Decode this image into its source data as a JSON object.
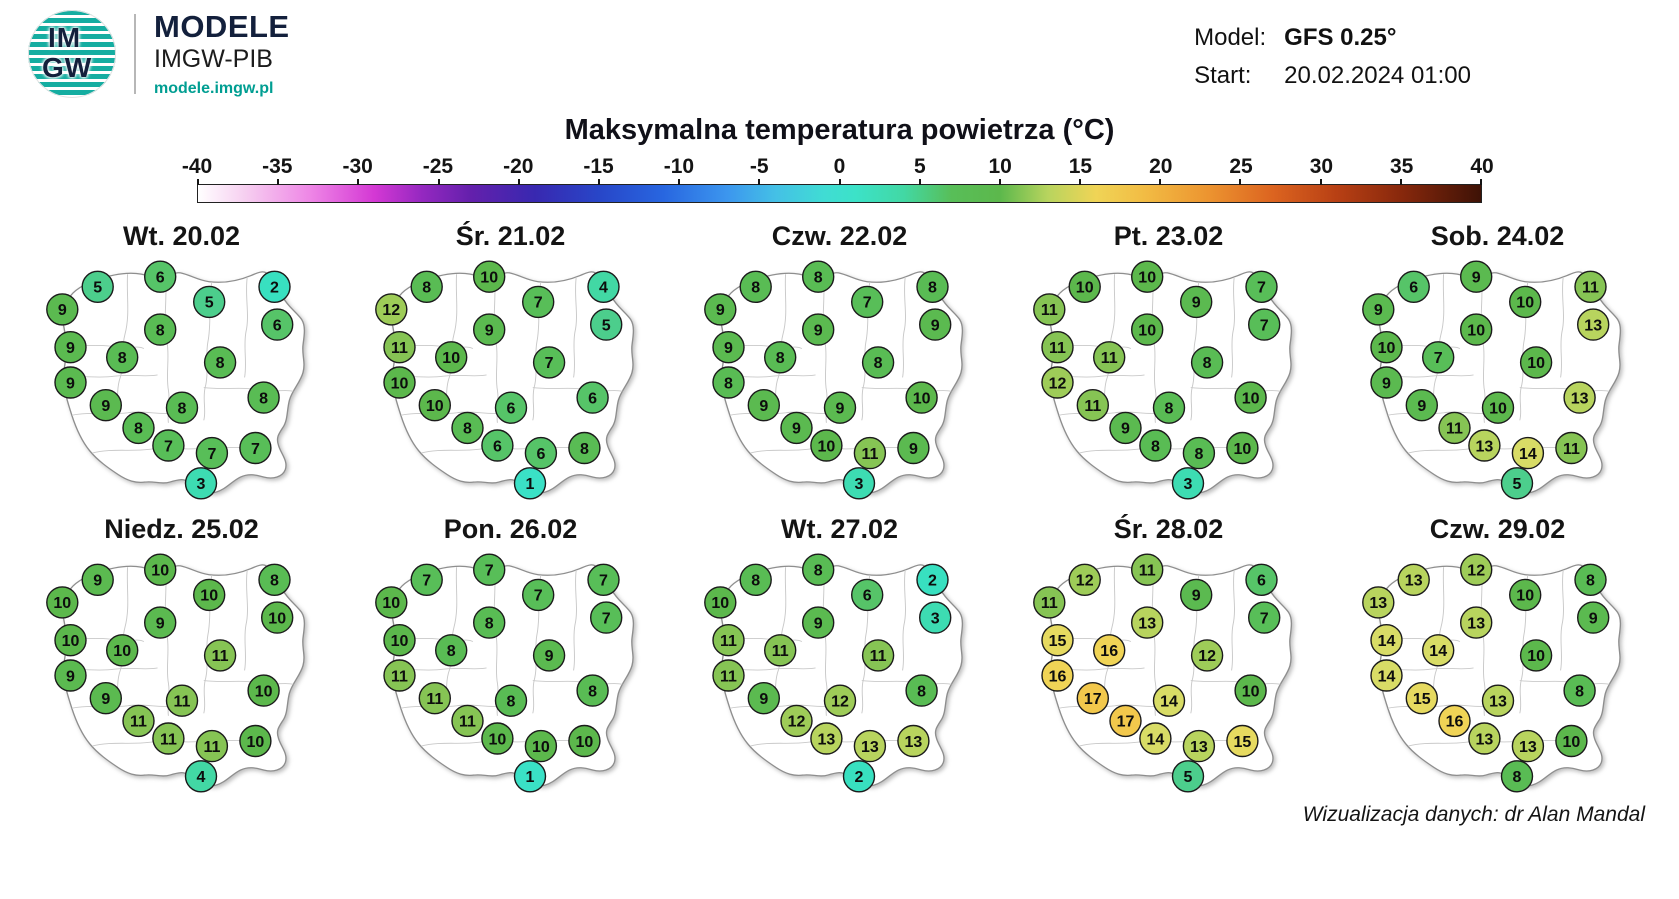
{
  "header": {
    "logo_text_top": "IM",
    "logo_text_bottom": "GW",
    "brand_name": "MODELE",
    "brand_sub": "IMGW-PIB",
    "brand_url": "modele.imgw.pl",
    "model_label": "Model:",
    "model_value": "GFS 0.25°",
    "start_label": "Start:",
    "start_value": "20.02.2024 01:00"
  },
  "title": "Maksymalna temperatura powietrza (°C)",
  "footer_credit": "Wizualizacja danych: dr Alan Mandal",
  "colors": {
    "brand_teal": "#15ada1",
    "brand_navy": "#13203c",
    "url_teal": "#009e92"
  },
  "chart_data": {
    "type": "heatmap",
    "title": "Maksymalna temperatura powietrza (°C)",
    "unit": "°C",
    "model": "GFS 0.25°",
    "run_start": "20.02.2024 01:00",
    "legend_position": "top",
    "scale_range": [
      -40,
      40
    ],
    "scale_ticks": [
      -40,
      -35,
      -30,
      -25,
      -20,
      -15,
      -10,
      -5,
      0,
      5,
      10,
      15,
      20,
      25,
      30,
      35,
      40
    ],
    "gradient_stops": [
      [
        -40,
        "#FFFFFF"
      ],
      [
        -37,
        "#F6CEF0"
      ],
      [
        -33,
        "#EE86E6"
      ],
      [
        -29,
        "#D438D4"
      ],
      [
        -26,
        "#9428C0"
      ],
      [
        -23,
        "#6420AC"
      ],
      [
        -19,
        "#3828B0"
      ],
      [
        -15,
        "#2846C8"
      ],
      [
        -11,
        "#2866E0"
      ],
      [
        -7,
        "#3C96EE"
      ],
      [
        -4,
        "#44C0E6"
      ],
      [
        -1,
        "#40DCD4"
      ],
      [
        1,
        "#3CE2C8"
      ],
      [
        4,
        "#42D8A4"
      ],
      [
        7,
        "#58BE58"
      ],
      [
        10,
        "#5CB84C"
      ],
      [
        13,
        "#B8D45E"
      ],
      [
        16,
        "#F0D456"
      ],
      [
        19,
        "#F2BC44"
      ],
      [
        23,
        "#EC9430"
      ],
      [
        27,
        "#DC6420"
      ],
      [
        31,
        "#B84014"
      ],
      [
        35,
        "#88280C"
      ],
      [
        40,
        "#3E1206"
      ]
    ],
    "marker_color_stops": [
      [
        0,
        "#3CE2CC"
      ],
      [
        2,
        "#38E0C0"
      ],
      [
        4,
        "#42D8A4"
      ],
      [
        5,
        "#4CCE8C"
      ],
      [
        6,
        "#56C468"
      ],
      [
        7,
        "#58BE58"
      ],
      [
        10,
        "#5CB84C"
      ],
      [
        11,
        "#86C454"
      ],
      [
        12,
        "#9ECC58"
      ],
      [
        13,
        "#B8D45E"
      ],
      [
        14,
        "#D8DC66"
      ],
      [
        15,
        "#E6DA60"
      ],
      [
        16,
        "#F0D456"
      ],
      [
        17,
        "#F2C84C"
      ]
    ],
    "marker_positions": [
      {
        "x": 19,
        "y": 13
      },
      {
        "x": 42,
        "y": 9
      },
      {
        "x": 84,
        "y": 13
      },
      {
        "x": 6,
        "y": 22
      },
      {
        "x": 60,
        "y": 19
      },
      {
        "x": 42,
        "y": 30
      },
      {
        "x": 85,
        "y": 28
      },
      {
        "x": 9,
        "y": 37
      },
      {
        "x": 28,
        "y": 41
      },
      {
        "x": 64,
        "y": 43
      },
      {
        "x": 9,
        "y": 51
      },
      {
        "x": 22,
        "y": 60
      },
      {
        "x": 50,
        "y": 61
      },
      {
        "x": 80,
        "y": 57
      },
      {
        "x": 34,
        "y": 69
      },
      {
        "x": 45,
        "y": 76
      },
      {
        "x": 61,
        "y": 79
      },
      {
        "x": 77,
        "y": 77
      },
      {
        "x": 57,
        "y": 91
      }
    ],
    "days": [
      {
        "label": "Wt. 20.02",
        "values": [
          5,
          6,
          2,
          9,
          5,
          8,
          6,
          9,
          8,
          8,
          9,
          9,
          8,
          8,
          8,
          7,
          7,
          7,
          3
        ]
      },
      {
        "label": "Śr. 21.02",
        "values": [
          8,
          10,
          4,
          12,
          7,
          9,
          5,
          11,
          10,
          7,
          10,
          10,
          6,
          6,
          8,
          6,
          6,
          8,
          1
        ]
      },
      {
        "label": "Czw. 22.02",
        "values": [
          8,
          8,
          8,
          9,
          7,
          9,
          9,
          9,
          8,
          8,
          8,
          9,
          9,
          10,
          9,
          10,
          11,
          9,
          3
        ]
      },
      {
        "label": "Pt. 23.02",
        "values": [
          10,
          10,
          7,
          11,
          9,
          10,
          7,
          11,
          11,
          8,
          12,
          11,
          8,
          10,
          9,
          8,
          8,
          10,
          3
        ]
      },
      {
        "label": "Sob. 24.02",
        "values": [
          6,
          9,
          11,
          9,
          10,
          10,
          13,
          10,
          7,
          10,
          9,
          9,
          10,
          13,
          11,
          13,
          14,
          11,
          5
        ]
      },
      {
        "label": "Niedz. 25.02",
        "values": [
          9,
          10,
          8,
          10,
          10,
          9,
          10,
          10,
          10,
          11,
          9,
          9,
          11,
          10,
          11,
          11,
          11,
          10,
          4
        ]
      },
      {
        "label": "Pon. 26.02",
        "values": [
          7,
          7,
          7,
          10,
          7,
          8,
          7,
          10,
          8,
          9,
          11,
          11,
          8,
          8,
          11,
          10,
          10,
          10,
          1
        ]
      },
      {
        "label": "Wt. 27.02",
        "values": [
          8,
          8,
          2,
          10,
          6,
          9,
          3,
          11,
          11,
          11,
          11,
          9,
          12,
          8,
          12,
          13,
          13,
          13,
          2
        ]
      },
      {
        "label": "Śr. 28.02",
        "values": [
          12,
          11,
          6,
          11,
          9,
          13,
          7,
          15,
          16,
          12,
          16,
          17,
          14,
          10,
          17,
          14,
          13,
          15,
          5
        ]
      },
      {
        "label": "Czw. 29.02",
        "values": [
          13,
          12,
          8,
          13,
          10,
          13,
          9,
          14,
          14,
          10,
          14,
          15,
          13,
          8,
          16,
          13,
          13,
          10,
          8
        ]
      }
    ]
  }
}
